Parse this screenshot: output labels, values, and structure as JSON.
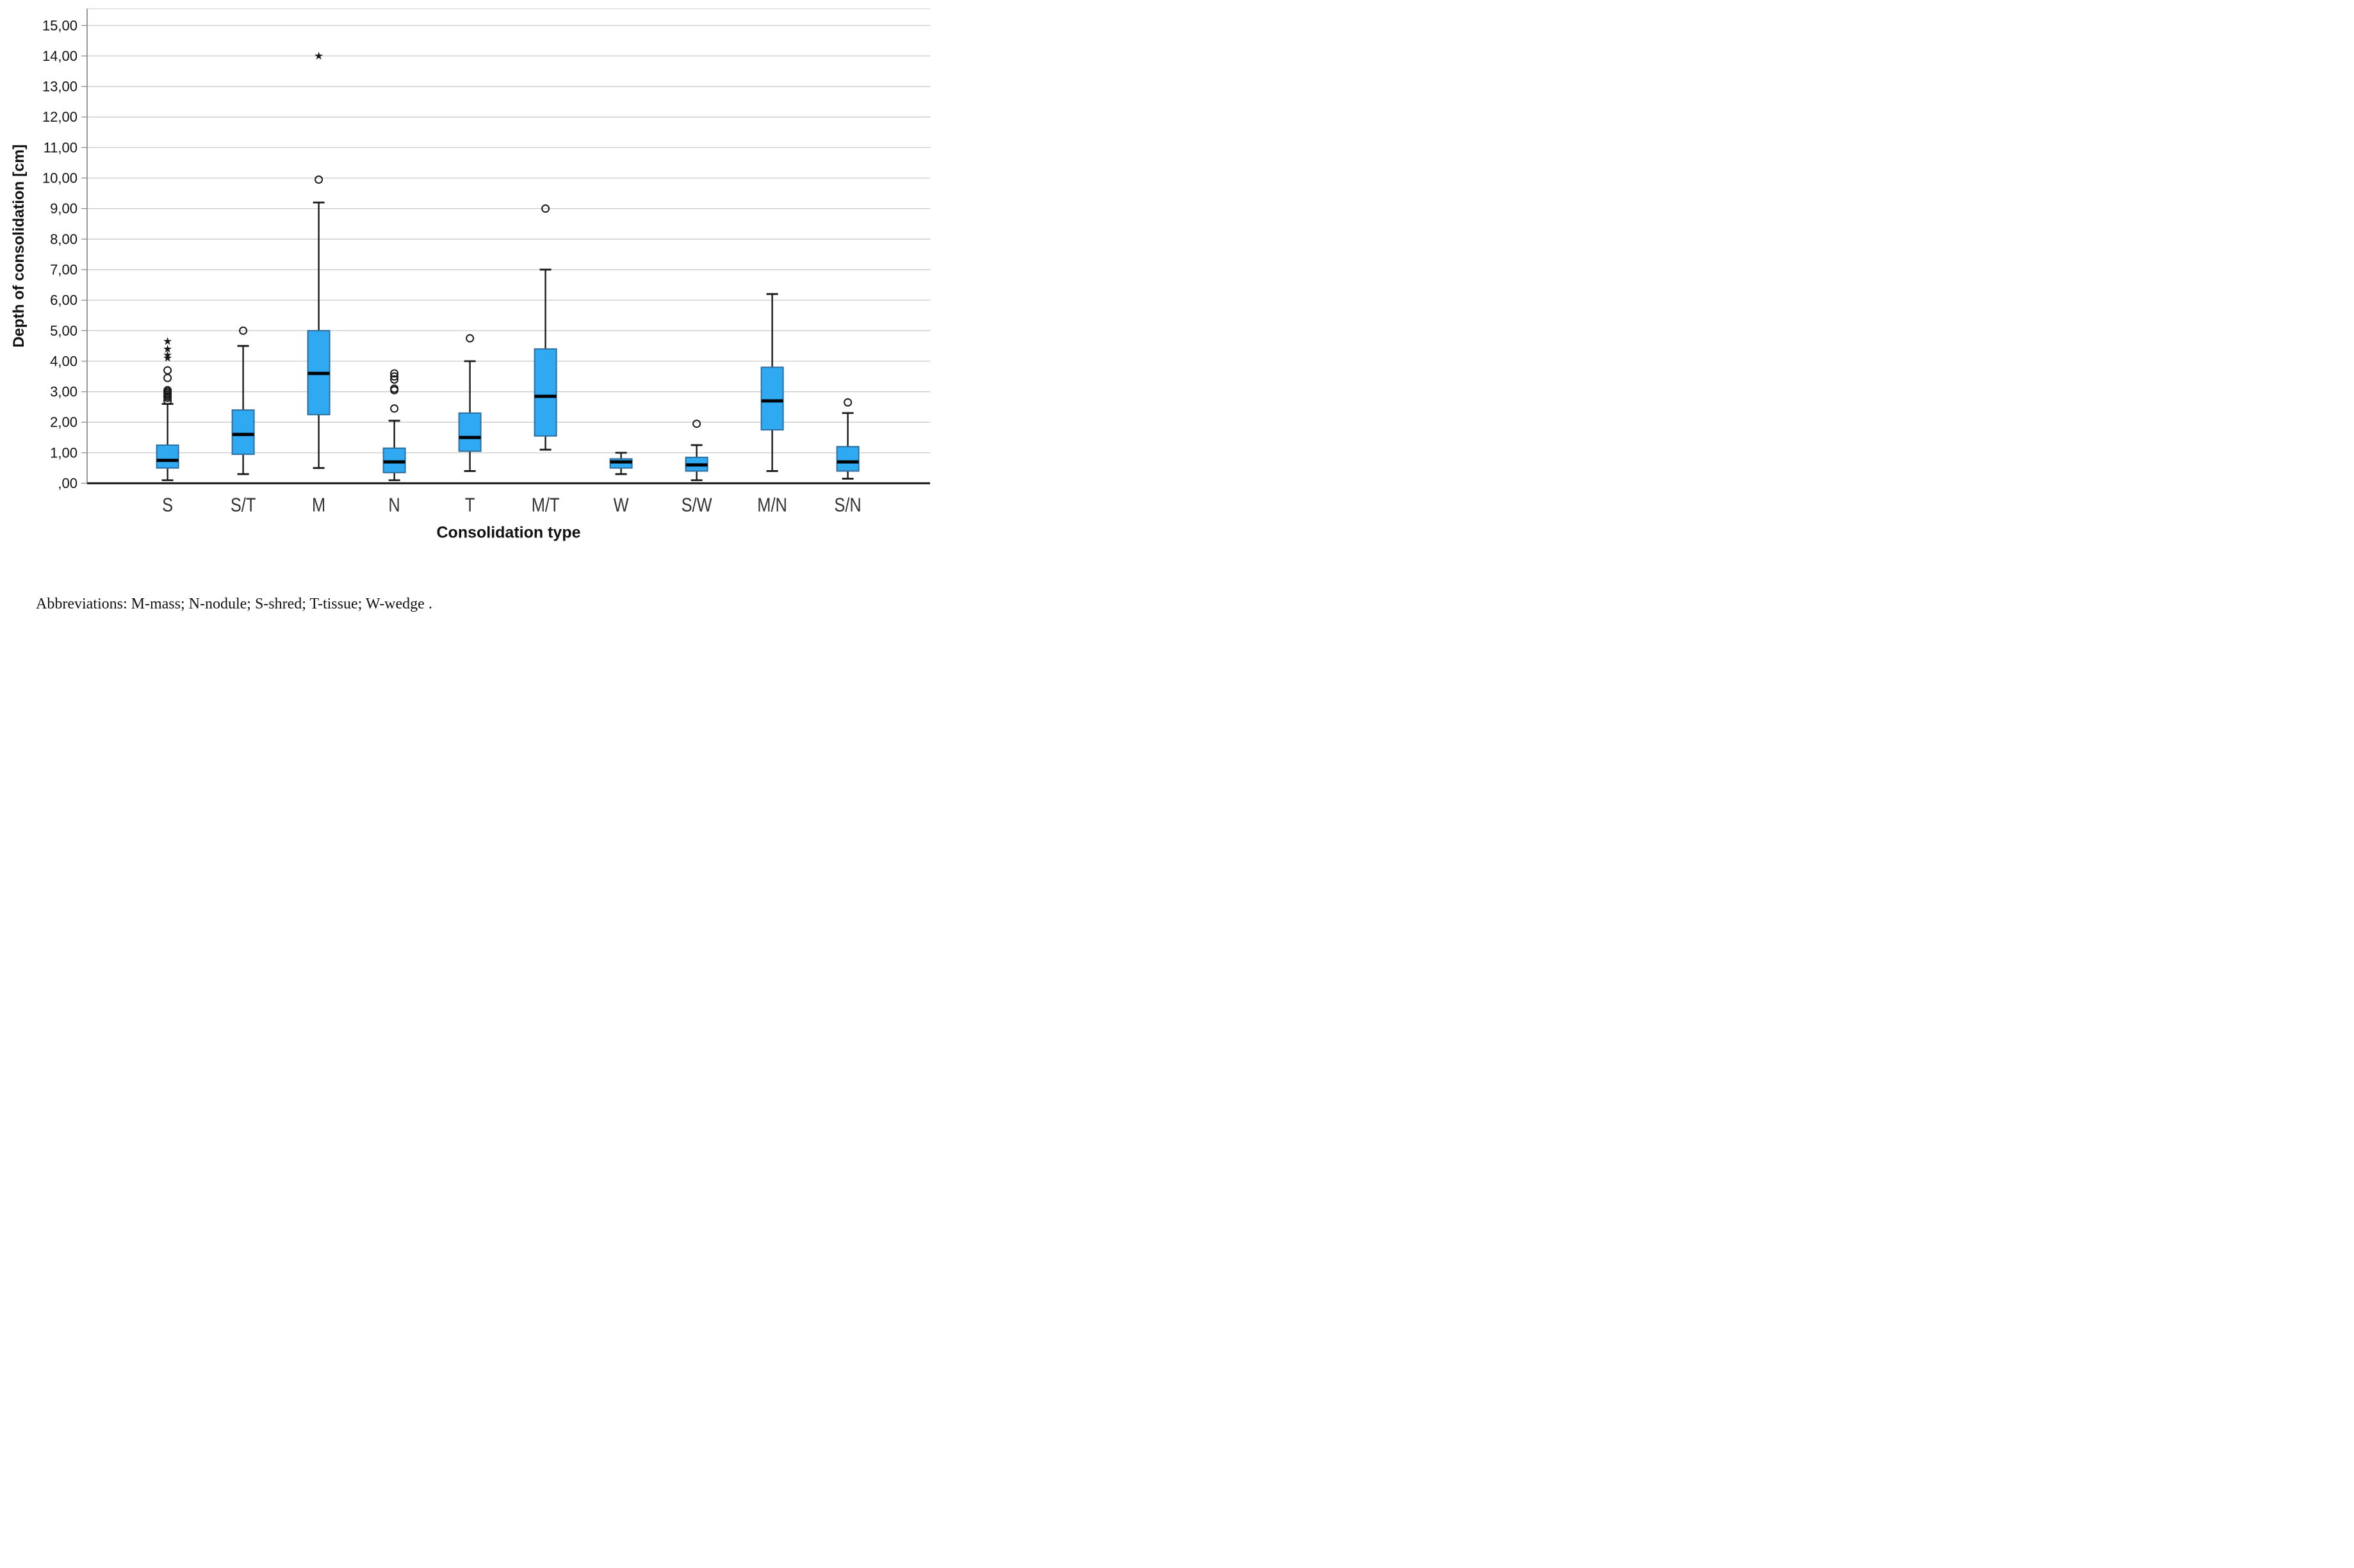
{
  "figure": {
    "ylabel": "Depth of consolidation [cm]",
    "xlabel": "Consolidation type",
    "abbreviations_note": "Abbreviations: M-mass; N-nodule; S-shred; T-tissue; W-wedge ."
  },
  "chart_data": {
    "type": "boxplot",
    "title": "",
    "xlabel": "Consolidation type",
    "ylabel": "Depth of consolidation [cm]",
    "ylim": [
      0,
      15.6
    ],
    "ytick_step": 1,
    "grid": true,
    "legend": "none",
    "decimal_style": "comma",
    "ytick_labels": [
      ",00",
      "1,00",
      "2,00",
      "3,00",
      "4,00",
      "5,00",
      "6,00",
      "7,00",
      "8,00",
      "9,00",
      "10,00",
      "11,00",
      "12,00",
      "13,00",
      "14,00",
      "15,00"
    ],
    "categories": [
      "S",
      "S/T",
      "M",
      "N",
      "T",
      "M/T",
      "W",
      "S/W",
      "M/N",
      "S/N"
    ],
    "series": [
      {
        "category": "S",
        "whisker_low": 0.1,
        "q1": 0.5,
        "median": 0.75,
        "q3": 1.25,
        "whisker_high": 2.6,
        "outliers": [
          2.7,
          2.8,
          2.85,
          2.9,
          2.95,
          3.0,
          3.05,
          3.45,
          3.7
        ],
        "extremes": [
          4.1,
          4.2,
          4.4,
          4.65
        ]
      },
      {
        "category": "S/T",
        "whisker_low": 0.3,
        "q1": 0.95,
        "median": 1.6,
        "q3": 2.4,
        "whisker_high": 4.5,
        "outliers": [
          5.0
        ],
        "extremes": []
      },
      {
        "category": "M",
        "whisker_low": 0.5,
        "q1": 2.25,
        "median": 3.6,
        "q3": 5.0,
        "whisker_high": 9.2,
        "outliers": [
          9.95
        ],
        "extremes": [
          14.0
        ]
      },
      {
        "category": "N",
        "whisker_low": 0.1,
        "q1": 0.35,
        "median": 0.7,
        "q3": 1.15,
        "whisker_high": 2.05,
        "outliers": [
          2.45,
          3.05,
          3.1,
          3.4,
          3.5,
          3.6
        ],
        "extremes": []
      },
      {
        "category": "T",
        "whisker_low": 0.4,
        "q1": 1.05,
        "median": 1.5,
        "q3": 2.3,
        "whisker_high": 4.0,
        "outliers": [
          4.75
        ],
        "extremes": []
      },
      {
        "category": "M/T",
        "whisker_low": 1.1,
        "q1": 1.55,
        "median": 2.85,
        "q3": 4.4,
        "whisker_high": 7.0,
        "outliers": [
          9.0
        ],
        "extremes": []
      },
      {
        "category": "W",
        "whisker_low": 0.3,
        "q1": 0.5,
        "median": 0.7,
        "q3": 0.8,
        "whisker_high": 1.0,
        "outliers": [],
        "extremes": []
      },
      {
        "category": "S/W",
        "whisker_low": 0.1,
        "q1": 0.4,
        "median": 0.6,
        "q3": 0.85,
        "whisker_high": 1.25,
        "outliers": [
          1.95
        ],
        "extremes": []
      },
      {
        "category": "M/N",
        "whisker_low": 0.4,
        "q1": 1.75,
        "median": 2.7,
        "q3": 3.8,
        "whisker_high": 6.2,
        "outliers": [],
        "extremes": []
      },
      {
        "category": "S/N",
        "whisker_low": 0.15,
        "q1": 0.4,
        "median": 0.7,
        "q3": 1.2,
        "whisker_high": 2.3,
        "outliers": [
          2.65
        ],
        "extremes": []
      }
    ],
    "colors": {
      "box_fill": "#2FA9F2",
      "box_border": "#2E6E9E",
      "median": "#000000",
      "whisker": "#1a1a1a",
      "outlier": "#1a1a1a",
      "grid": "#c9c9c9",
      "frame_top": "#d9d9d9",
      "axis_y": "#8f8f8f",
      "axis_x": "#262626",
      "tick_label": "#111111",
      "xtick_label": "#333333"
    }
  }
}
